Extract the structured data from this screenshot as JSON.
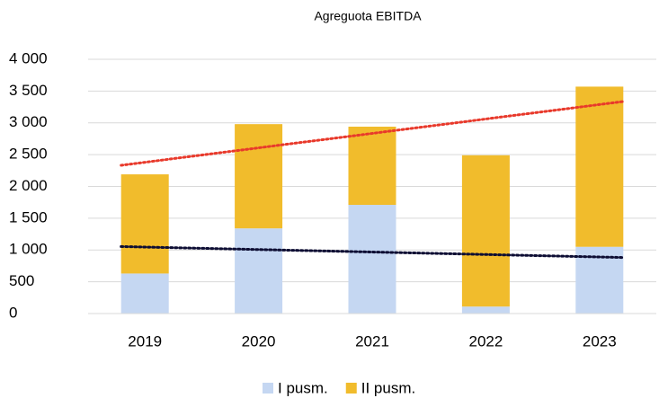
{
  "chart_data": {
    "type": "stacked_bar",
    "title": "Agreguota EBITDA",
    "categories": [
      "2019",
      "2020",
      "2021",
      "2022",
      "2023"
    ],
    "series": [
      {
        "name": "I pusm.",
        "color": "#c5d7f2",
        "values": [
          630,
          1340,
          1710,
          110,
          1050
        ],
        "trendline_color": "#0d0d33"
      },
      {
        "name": "II pusm.",
        "color": "#f1bc2c",
        "values": [
          1560,
          1640,
          1230,
          2380,
          2520
        ]
      }
    ],
    "total_trendline_color": "#e8392b",
    "ylim": [
      0,
      4000
    ],
    "yticks": [
      0,
      500,
      {
        "value": 1000,
        "label": "1 000"
      },
      {
        "value": 1500,
        "label": "1 500"
      },
      {
        "value": 2000,
        "label": "2 000"
      },
      {
        "value": 2500,
        "label": "2 500"
      },
      {
        "value": 3000,
        "label": "3 000"
      },
      {
        "value": 3500,
        "label": "3 500"
      },
      {
        "value": 4000,
        "label": "4 000"
      }
    ],
    "grid": true,
    "legend": "bottom"
  }
}
